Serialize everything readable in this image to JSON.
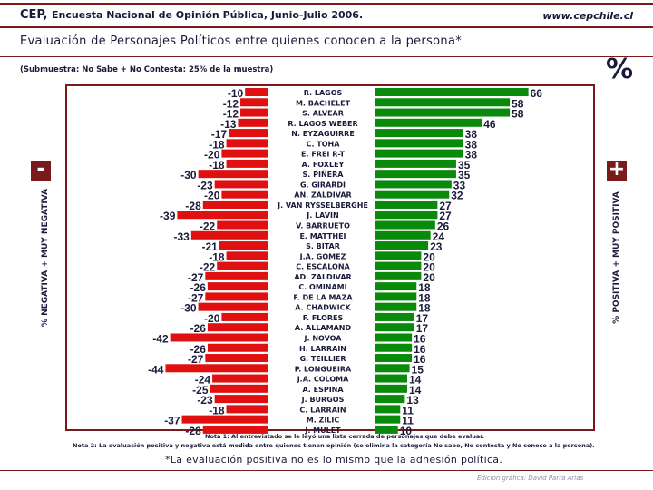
{
  "header": {
    "title": "CEP,",
    "subtitle_text": "Encuesta Nacional de Opinión Pública, Junio-Julio 2006.",
    "url": "www.cepchile.cl"
  },
  "subtitle": "Evaluación de Personajes Políticos entre quienes conocen a la persona*",
  "submuestra": "(Submuestra: No Sabe + No Contesta: 25% de la muestra)",
  "percent_symbol": "%",
  "labels": {
    "negative_axis": "% NEGATIVA + MUY NEGATIVA",
    "positive_axis": "% POSITIVA + MUY POSITIVA",
    "minus": "-",
    "plus": "+"
  },
  "notes": {
    "nota1": "Nota 1: Al entrevistado se le leyó una lista cerrada de personajes que debe evaluar.",
    "nota2": "Nota 2: La evaluación positiva y negativa está medida entre quienes tienen opinión (se elimina la categoría No sabe, No contesta y No conoce a la persona).",
    "footnote": "*La evaluación positiva no es lo mismo que la adhesión política."
  },
  "credit": "Edición gráfica: David Parra Arias",
  "colors": {
    "positive": "#0a8a0a",
    "negative": "#e01010",
    "frame": "#7a1a1a",
    "text": "#1a1a3a"
  },
  "chart_data": {
    "type": "bar",
    "orientation": "horizontal-diverging",
    "title": "Evaluación de Personajes Políticos entre quienes conocen a la persona*",
    "xlabel_negative": "% NEGATIVA + MUY NEGATIVA",
    "xlabel_positive": "% POSITIVA + MUY POSITIVA",
    "categories": [
      "R. LAGOS",
      "M. BACHELET",
      "S. ALVEAR",
      "R. LAGOS WEBER",
      "N. EYZAGUIRRE",
      "C. TOHA",
      "E. FREI R-T",
      "A. FOXLEY",
      "S. PIÑERA",
      "G. GIRARDI",
      "AN. ZALDIVAR",
      "J. VAN RYSSELBERGHE",
      "J. LAVIN",
      "V. BARRUETO",
      "E. MATTHEI",
      "S. BITAR",
      "J.A. GOMEZ",
      "C. ESCALONA",
      "AD. ZALDIVAR",
      "C. OMINAMI",
      "F. DE LA MAZA",
      "A. CHADWICK",
      "F. FLORES",
      "A. ALLAMAND",
      "J. NOVOA",
      "H. LARRAIN",
      "G. TEILLIER",
      "P. LONGUEIRA",
      "J.A. COLOMA",
      "A. ESPINA",
      "J. BURGOS",
      "C. LARRAIN",
      "M. ZILIC",
      "J. MULET"
    ],
    "series": [
      {
        "name": "Positiva",
        "values": [
          66,
          58,
          58,
          46,
          38,
          38,
          38,
          35,
          35,
          33,
          32,
          27,
          27,
          26,
          24,
          23,
          20,
          20,
          20,
          18,
          18,
          18,
          17,
          17,
          16,
          16,
          16,
          15,
          14,
          14,
          13,
          11,
          11,
          10
        ]
      },
      {
        "name": "Negativa",
        "values": [
          -10,
          -12,
          -12,
          -13,
          -17,
          -18,
          -20,
          -18,
          -30,
          -23,
          -20,
          -28,
          -39,
          -22,
          -33,
          -21,
          -18,
          -22,
          -27,
          -26,
          -27,
          -30,
          -20,
          -26,
          -42,
          -26,
          -27,
          -44,
          -24,
          -25,
          -23,
          -18,
          -37,
          -28
        ]
      }
    ]
  }
}
